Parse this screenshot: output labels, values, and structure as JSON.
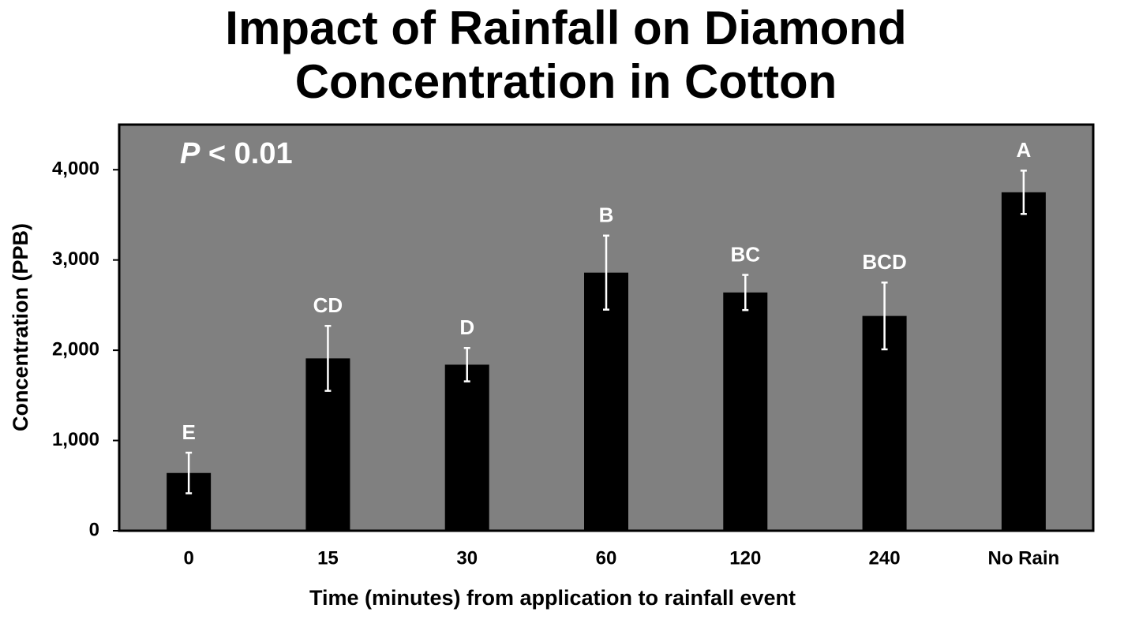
{
  "chart_data": {
    "type": "bar",
    "title": [
      "Impact of Rainfall on Diamond",
      "Concentration in Cotton"
    ],
    "annotation": "P < 0.01",
    "x_label": "Time (minutes) from application to rainfall event",
    "y_label": "Concentration (PPB)",
    "categories": [
      "0",
      "15",
      "30",
      "60",
      "120",
      "240",
      "No Rain"
    ],
    "values": [
      640,
      1910,
      1840,
      2860,
      2640,
      2380,
      3750
    ],
    "errors": [
      225,
      360,
      185,
      410,
      195,
      370,
      240
    ],
    "labels": [
      "E",
      "CD",
      "D",
      "B",
      "BC",
      "BCD",
      "A"
    ],
    "color": "#000000",
    "background": "#808080",
    "error_color": "#ffffff",
    "ylim": [
      0,
      4500
    ],
    "yticks": [
      0,
      {
        "value": 1000,
        "label": "1,000"
      },
      {
        "value": 2000,
        "label": "2,000"
      },
      {
        "value": 3000,
        "label": "3,000"
      },
      {
        "value": 4000,
        "label": "4,000"
      }
    ]
  }
}
